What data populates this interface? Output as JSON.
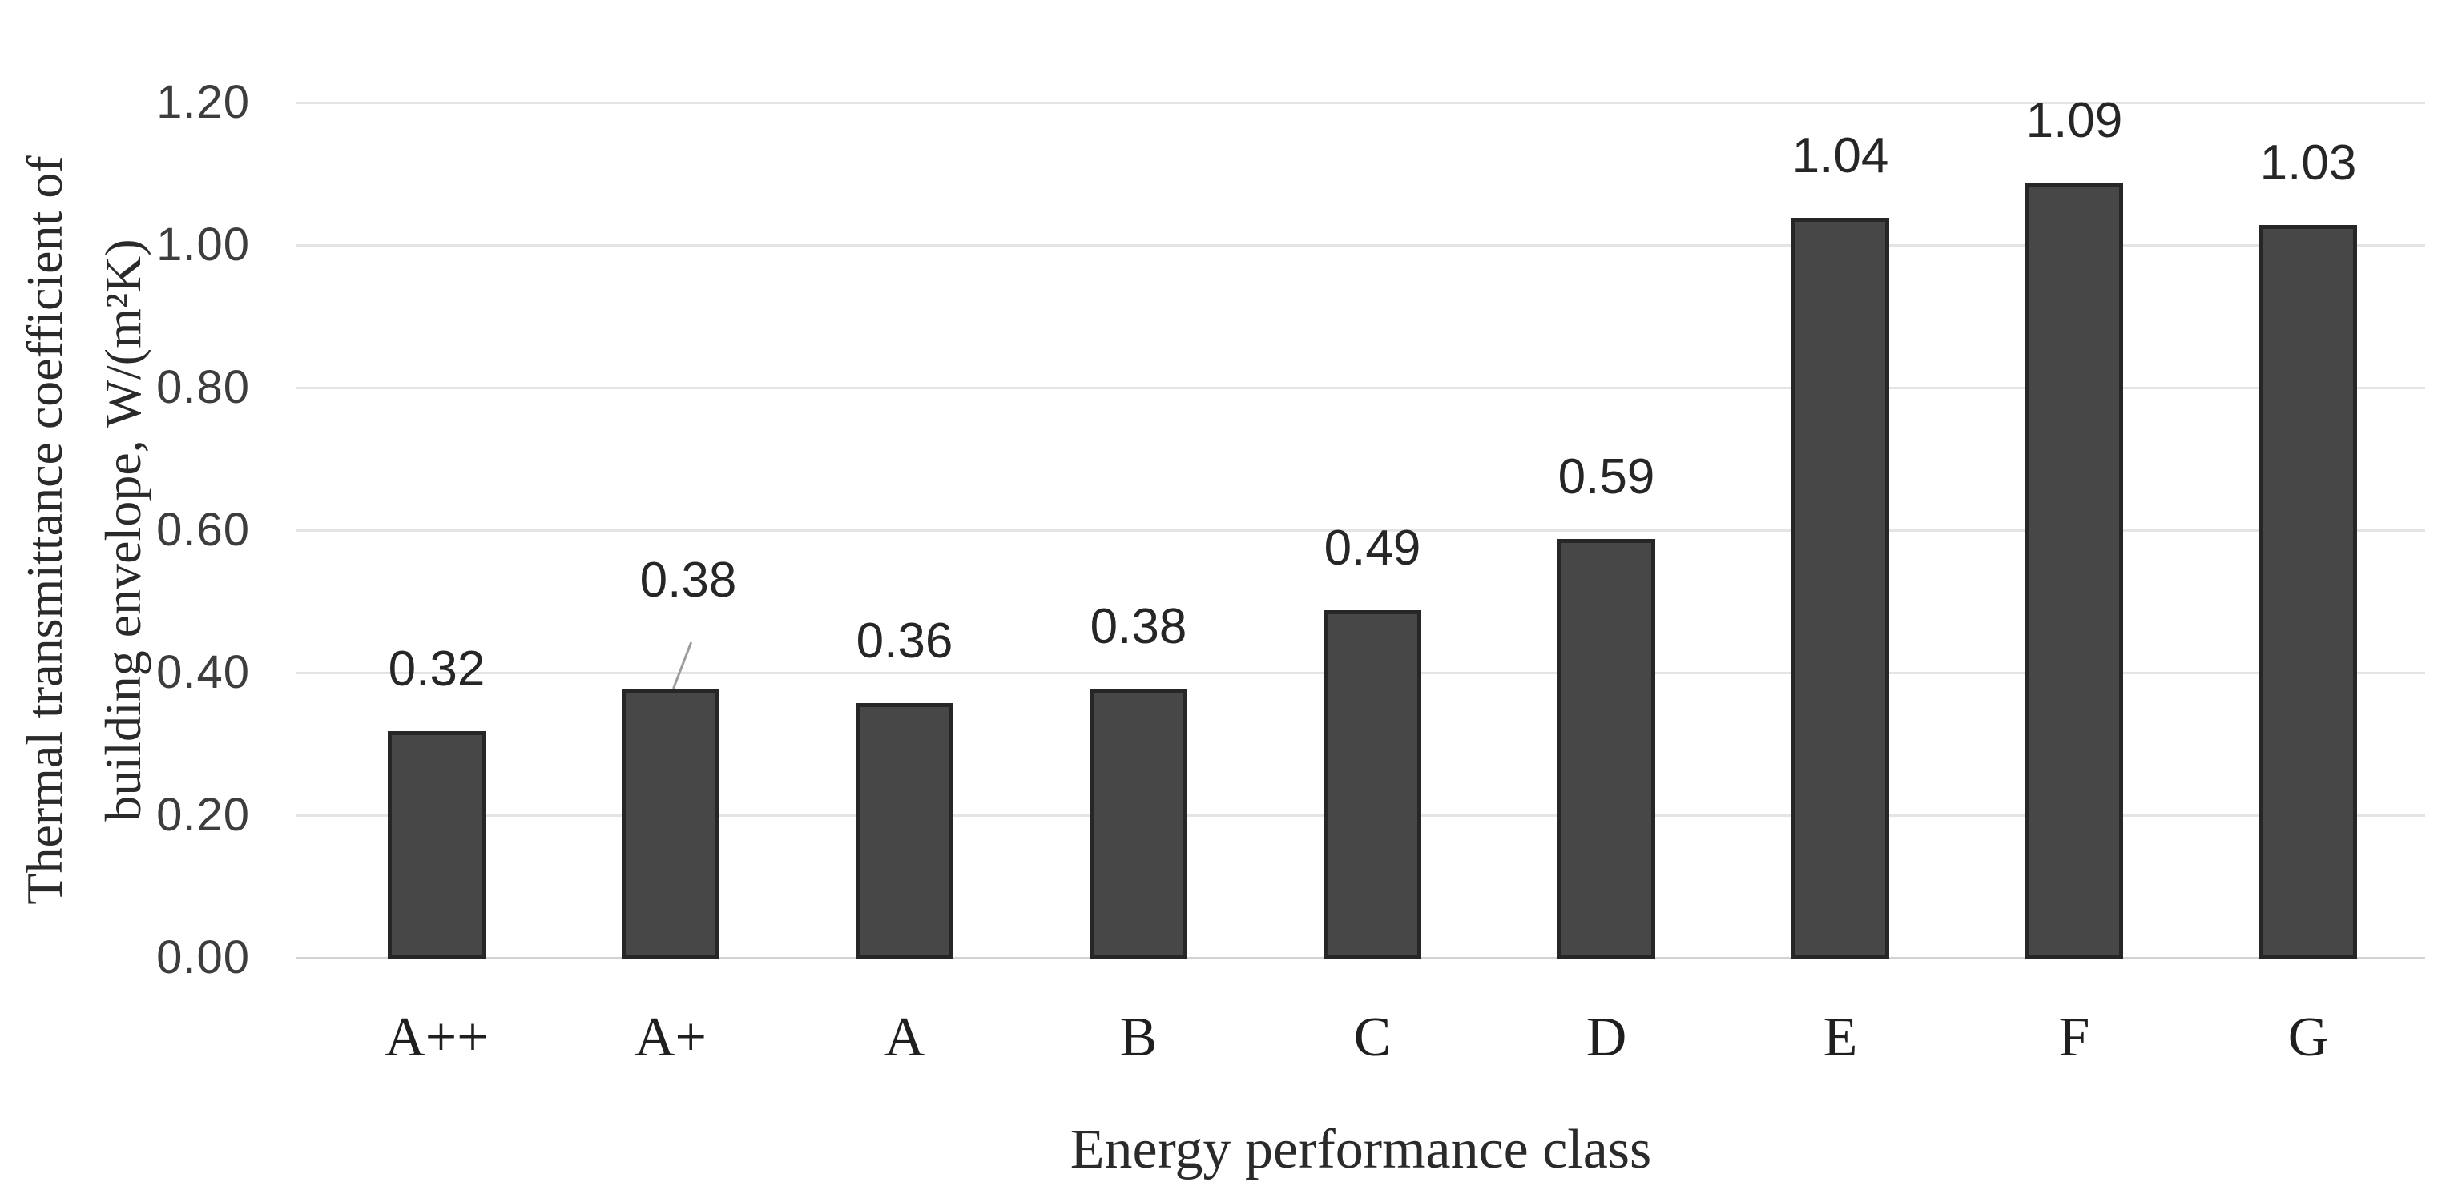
{
  "figure": {
    "background": "#ffffff",
    "bar_fill": "#474747",
    "bar_border": "#262626",
    "gridline_color": "#e4e4e4",
    "axis_line_color": "#d2d2d2",
    "leader_line_color": "#9c9c9c"
  },
  "chart_data": {
    "type": "bar",
    "title": "",
    "xlabel": "Energy performance class",
    "ylabel_line1": "Thermal transmittance coefficient of",
    "ylabel_line2": "building envelope, W/(m²K)",
    "categories": [
      "A++",
      "A+",
      "A",
      "B",
      "C",
      "D",
      "E",
      "F",
      "G"
    ],
    "values": [
      0.32,
      0.38,
      0.36,
      0.38,
      0.49,
      0.59,
      1.04,
      1.09,
      1.03
    ],
    "data_labels": [
      "0.32",
      "0.38",
      "0.36",
      "0.38",
      "0.49",
      "0.59",
      "1.04",
      "1.09",
      "1.03"
    ],
    "yticks": [
      "1.20",
      "1.00",
      "0.80",
      "0.60",
      "0.40",
      "0.20",
      "0.00"
    ],
    "ylim": [
      0,
      1.2
    ],
    "grid": true,
    "legend": false,
    "callout_index": 1
  }
}
